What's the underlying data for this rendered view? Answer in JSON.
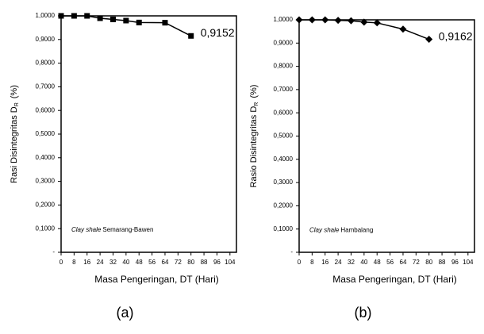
{
  "chart_data": [
    {
      "type": "line",
      "marker": "square",
      "color": "#000000",
      "ylabel_main": "Rasi Disintegritas D",
      "ylabel_sub": "R",
      "ylabel_unit": "(%)",
      "xlabel": "Masa Pengeringan, DT (Hari)",
      "panel": "(a)",
      "note_italic": "Clay shale",
      "note": "Semarang-Bawen",
      "x": [
        0,
        8,
        16,
        24,
        32,
        40,
        48,
        64,
        80
      ],
      "values": [
        1.0,
        1.0,
        1.0,
        0.99,
        0.985,
        0.98,
        0.972,
        0.971,
        0.9152
      ],
      "annotation": "0,9152",
      "xlim": [
        0,
        108
      ],
      "xticks": [
        0,
        8,
        16,
        24,
        32,
        40,
        48,
        56,
        64,
        72,
        80,
        88,
        96,
        104
      ],
      "ylim": [
        0,
        1
      ],
      "yticks": [
        {
          "value": 0,
          "label": "-"
        },
        {
          "value": 0.1,
          "label": "0,1000"
        },
        {
          "value": 0.2,
          "label": "0,2000"
        },
        {
          "value": 0.3,
          "label": "0,3000"
        },
        {
          "value": 0.4,
          "label": "0,4000"
        },
        {
          "value": 0.5,
          "label": "0,5000"
        },
        {
          "value": 0.6,
          "label": "0,6000"
        },
        {
          "value": 0.7,
          "label": "0,7000"
        },
        {
          "value": 0.8,
          "label": "0,8000"
        },
        {
          "value": 0.9,
          "label": "0,9000"
        },
        {
          "value": 1.0,
          "label": "1,0000"
        }
      ]
    },
    {
      "type": "line",
      "marker": "diamond",
      "color": "#000000",
      "ylabel_main": "Rasio Disintegritas D",
      "ylabel_sub": "R",
      "ylabel_unit": "(%)",
      "xlabel": "Masa Pengeringan, DT  (Hari)",
      "panel": "(b)",
      "note_italic": "Clay shale",
      "note": "Hambalang",
      "x": [
        0,
        8,
        16,
        24,
        32,
        40,
        48,
        64,
        80
      ],
      "values": [
        1.0,
        1.0,
        1.0,
        0.998,
        0.996,
        0.99,
        0.987,
        0.96,
        0.9162
      ],
      "annotation": "0,9162",
      "xlim": [
        0,
        108
      ],
      "xticks": [
        0,
        8,
        16,
        24,
        32,
        40,
        48,
        56,
        64,
        72,
        80,
        88,
        96,
        104
      ],
      "ylim": [
        0,
        1
      ],
      "yticks": [
        {
          "value": 0,
          "label": "-"
        },
        {
          "value": 0.1,
          "label": "0,1000"
        },
        {
          "value": 0.2,
          "label": "0,2000"
        },
        {
          "value": 0.3,
          "label": "0,3000"
        },
        {
          "value": 0.4,
          "label": "0,4000"
        },
        {
          "value": 0.5,
          "label": "0,5000"
        },
        {
          "value": 0.6,
          "label": "0,6000"
        },
        {
          "value": 0.7,
          "label": "0,7000"
        },
        {
          "value": 0.8,
          "label": "0,8000"
        },
        {
          "value": 0.9,
          "label": "0,9000"
        },
        {
          "value": 1.0,
          "label": "1,0000"
        }
      ]
    }
  ]
}
